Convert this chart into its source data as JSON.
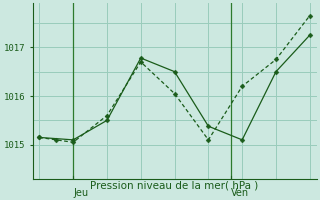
{
  "background_color": "#cce8e0",
  "grid_color": "#99ccbb",
  "line_color": "#1a5c1a",
  "marker_color": "#1a5c1a",
  "xlabel": "Pression niveau de la mer( hPa )",
  "xlabel_fontsize": 7.5,
  "yticks": [
    1015,
    1016,
    1017
  ],
  "ylim": [
    1014.3,
    1017.9
  ],
  "xlim": [
    -0.3,
    12.3
  ],
  "xtick_labels_jeu": "Jeu",
  "xtick_labels_ven": "Ven",
  "jeu_x": 1.5,
  "ven_x": 8.5,
  "series1_x": [
    0,
    0.75,
    1.5,
    3.0,
    4.5,
    6.0,
    7.5,
    9.0,
    10.5,
    12.0
  ],
  "series1_y": [
    1015.15,
    1015.1,
    1015.05,
    1015.6,
    1016.7,
    1016.05,
    1015.1,
    1016.2,
    1016.75,
    1017.65
  ],
  "series2_x": [
    0,
    1.5,
    3.0,
    4.5,
    6.0,
    7.5,
    9.0,
    10.5,
    12.0
  ],
  "series2_y": [
    1015.15,
    1015.1,
    1015.5,
    1016.78,
    1016.5,
    1015.38,
    1015.1,
    1016.5,
    1017.25
  ],
  "vline_x": [
    1.5,
    8.5
  ],
  "vline_color": "#2d7a2d",
  "tick_color": "#1a5c1a",
  "axis_color": "#1a5c1a",
  "grid_h_values": [
    1015.0,
    1015.5,
    1016.0,
    1016.5,
    1017.0,
    1017.5
  ],
  "grid_v_count": 9
}
